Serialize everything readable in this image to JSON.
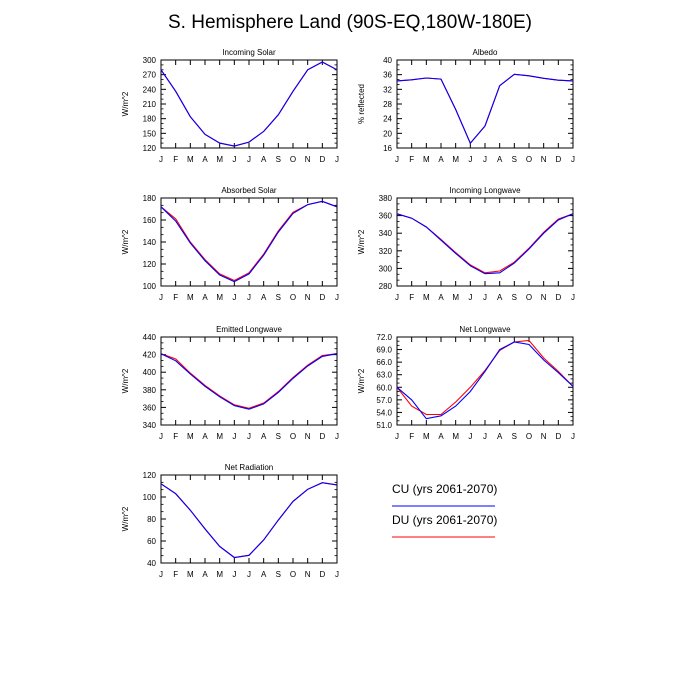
{
  "figure": {
    "title": "S. Hemisphere Land (90S-EQ,180W-180E)"
  },
  "legend": {
    "items": [
      {
        "label": "CU (yrs 2061-2070)",
        "color": "#0000ff"
      },
      {
        "label": "DU (yrs 2061-2070)",
        "color": "#ff0000"
      }
    ]
  },
  "chart_data": [
    {
      "type": "line",
      "title": "Incoming Solar",
      "ylabel": "W/m^2",
      "categories": [
        "J",
        "F",
        "M",
        "A",
        "M",
        "J",
        "J",
        "A",
        "S",
        "O",
        "N",
        "D",
        "J"
      ],
      "ylim": [
        120,
        300
      ],
      "yticks": [
        120,
        150,
        180,
        210,
        240,
        270,
        300
      ],
      "ytick_labels": [
        "120",
        "150",
        "180",
        "210",
        "240",
        "270",
        "300"
      ],
      "series": [
        {
          "name": "CU (yrs 2061-2070)",
          "color": "#0000ff",
          "values": [
            280,
            236,
            184,
            148,
            130,
            124,
            132,
            154,
            188,
            236,
            280,
            296,
            280
          ]
        },
        {
          "name": "DU (yrs 2061-2070)",
          "color": "#ff0000",
          "values": [
            280,
            236,
            184,
            148,
            130,
            124,
            132,
            154,
            188,
            236,
            280,
            296,
            280
          ]
        }
      ]
    },
    {
      "type": "line",
      "title": "Albedo",
      "ylabel": "% reflected",
      "categories": [
        "J",
        "F",
        "M",
        "A",
        "M",
        "J",
        "J",
        "A",
        "S",
        "O",
        "N",
        "D",
        "J"
      ],
      "ylim": [
        16,
        40
      ],
      "yticks": [
        16,
        20,
        24,
        28,
        32,
        36,
        40
      ],
      "ytick_labels": [
        "16",
        "20",
        "24",
        "28",
        "32",
        "36",
        "40"
      ],
      "series": [
        {
          "name": "CU (yrs 2061-2070)",
          "color": "#0000ff",
          "values": [
            34.3,
            34.6,
            35.1,
            34.8,
            26.5,
            17.3,
            22,
            33,
            36.1,
            35.7,
            35,
            34.5,
            34.3
          ]
        },
        {
          "name": "DU (yrs 2061-2070)",
          "color": "#ff0000",
          "values": [
            34.3,
            34.6,
            35.1,
            34.8,
            26.5,
            17.3,
            22,
            33,
            36.1,
            35.7,
            35,
            34.5,
            34.3
          ]
        }
      ]
    },
    {
      "type": "line",
      "title": "Absorbed Solar",
      "ylabel": "W/m^2",
      "categories": [
        "J",
        "F",
        "M",
        "A",
        "M",
        "J",
        "J",
        "A",
        "S",
        "O",
        "N",
        "D",
        "J"
      ],
      "ylim": [
        100,
        180
      ],
      "yticks": [
        100,
        120,
        140,
        160,
        180
      ],
      "ytick_labels": [
        "100",
        "120",
        "140",
        "160",
        "180"
      ],
      "series": [
        {
          "name": "CU (yrs 2061-2070)",
          "color": "#0000ff",
          "values": [
            172,
            159,
            139,
            123,
            110,
            104,
            111,
            128,
            149,
            166,
            174,
            177,
            172
          ]
        },
        {
          "name": "DU (yrs 2061-2070)",
          "color": "#ff0000",
          "values": [
            172,
            161,
            140,
            124,
            111,
            105,
            112,
            129,
            150,
            167,
            174,
            177,
            172
          ]
        }
      ]
    },
    {
      "type": "line",
      "title": "Incoming Longwave",
      "ylabel": "W/m^2",
      "categories": [
        "J",
        "F",
        "M",
        "A",
        "M",
        "J",
        "J",
        "A",
        "S",
        "O",
        "N",
        "D",
        "J"
      ],
      "ylim": [
        280,
        380
      ],
      "yticks": [
        280,
        300,
        320,
        340,
        360,
        380
      ],
      "ytick_labels": [
        "280",
        "300",
        "320",
        "340",
        "360",
        "380"
      ],
      "series": [
        {
          "name": "CU (yrs 2061-2070)",
          "color": "#0000ff",
          "values": [
            362,
            357,
            347,
            332,
            317,
            303,
            294,
            295,
            306,
            322,
            340,
            355,
            362
          ]
        },
        {
          "name": "DU (yrs 2061-2070)",
          "color": "#ff0000",
          "values": [
            362,
            357,
            347,
            333,
            318,
            304,
            295,
            297,
            307,
            323,
            341,
            356,
            362
          ]
        }
      ]
    },
    {
      "type": "line",
      "title": "Emitted Longwave",
      "ylabel": "W/m^2",
      "categories": [
        "J",
        "F",
        "M",
        "A",
        "M",
        "J",
        "J",
        "A",
        "S",
        "O",
        "N",
        "D",
        "J"
      ],
      "ylim": [
        340,
        440
      ],
      "yticks": [
        340,
        360,
        380,
        400,
        420,
        440
      ],
      "ytick_labels": [
        "340",
        "360",
        "380",
        "400",
        "420",
        "440"
      ],
      "series": [
        {
          "name": "CU (yrs 2061-2070)",
          "color": "#0000ff",
          "values": [
            421,
            413,
            398,
            384,
            372,
            362,
            358,
            364,
            377,
            393,
            407,
            418,
            421
          ]
        },
        {
          "name": "DU (yrs 2061-2070)",
          "color": "#ff0000",
          "values": [
            421,
            415,
            399,
            385,
            373,
            363,
            359,
            365,
            378,
            394,
            408,
            419,
            421
          ]
        }
      ]
    },
    {
      "type": "line",
      "title": "Net Longwave",
      "ylabel": "W/m^2",
      "categories": [
        "J",
        "F",
        "M",
        "A",
        "M",
        "J",
        "J",
        "A",
        "S",
        "O",
        "N",
        "D",
        "J"
      ],
      "ylim": [
        51,
        72
      ],
      "yticks": [
        51,
        54,
        57,
        60,
        63,
        66,
        69,
        72
      ],
      "ytick_labels": [
        "51.0",
        "54.0",
        "57.0",
        "60.0",
        "63.0",
        "66.0",
        "69.0",
        "72.0"
      ],
      "series": [
        {
          "name": "CU (yrs 2061-2070)",
          "color": "#0000ff",
          "values": [
            60,
            57,
            52.5,
            53.2,
            55.5,
            59,
            63.8,
            69,
            70.8,
            70.2,
            66.5,
            63.5,
            60.2
          ]
        },
        {
          "name": "DU (yrs 2061-2070)",
          "color": "#ff0000",
          "values": [
            60,
            55.5,
            53.5,
            53.5,
            56.5,
            60,
            64,
            68.8,
            70.8,
            71.2,
            67,
            63.8,
            60.2
          ]
        }
      ]
    },
    {
      "type": "line",
      "title": "Net Radiation",
      "ylabel": "W/m^2",
      "categories": [
        "J",
        "F",
        "M",
        "A",
        "M",
        "J",
        "J",
        "A",
        "S",
        "O",
        "N",
        "D",
        "J"
      ],
      "ylim": [
        40,
        120
      ],
      "yticks": [
        40,
        60,
        80,
        100,
        120
      ],
      "ytick_labels": [
        "40",
        "60",
        "80",
        "100",
        "120"
      ],
      "series": [
        {
          "name": "CU (yrs 2061-2070)",
          "color": "#0000ff",
          "values": [
            112,
            103,
            88,
            71,
            55,
            45,
            47,
            61,
            79,
            96,
            107,
            113,
            111
          ]
        },
        {
          "name": "DU (yrs 2061-2070)",
          "color": "#ff0000",
          "values": [
            112,
            103,
            88,
            71,
            55,
            45,
            47,
            61,
            79,
            96,
            107,
            113,
            111
          ]
        }
      ]
    }
  ]
}
